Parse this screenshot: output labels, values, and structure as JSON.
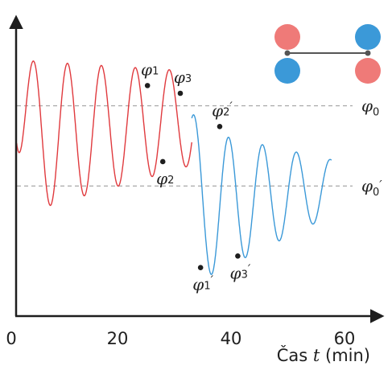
{
  "chart_data": {
    "type": "line",
    "xlabel_prefix": "Čas ",
    "xlabel_var": "t",
    "xlabel_suffix": " (min)",
    "x_ticks": [
      "0",
      "20",
      "40",
      "60"
    ],
    "xlim": [
      0,
      60
    ],
    "ylim": [
      0,
      1
    ],
    "grid": false,
    "series": [
      {
        "color": "#e03a3e",
        "x_start": 0.1,
        "x_end": 32.1,
        "initial": 0.57,
        "amp": 0.28,
        "amp_end": 0.17,
        "center": 0.59,
        "center_end": 0.66,
        "period": 6.2,
        "phase": -1.55
      },
      {
        "color": "#3b99d8",
        "x_start": 32.1,
        "x_end": 57.6,
        "initial": 0.66,
        "amp": 0.28,
        "amp_end": 0.1,
        "center": 0.34,
        "center_end": 0.41,
        "period": 6.2,
        "phase": 1.05
      }
    ],
    "reference_lines": [
      {
        "y": 0.705,
        "label": "φ",
        "sub": "0",
        "prime": ""
      },
      {
        "y": 0.415,
        "label": "φ",
        "sub": "0",
        "prime": "′"
      }
    ],
    "markers": [
      {
        "x": 24.0,
        "y": 0.778,
        "label": "φ",
        "sub": "1",
        "prime": "",
        "pos": "above"
      },
      {
        "x": 26.8,
        "y": 0.503,
        "label": "φ",
        "sub": "2",
        "prime": "",
        "pos": "below"
      },
      {
        "x": 30.0,
        "y": 0.75,
        "label": "φ",
        "sub": "3",
        "prime": "",
        "pos": "above"
      },
      {
        "x": 33.7,
        "y": 0.12,
        "label": "φ",
        "sub": "1",
        "prime": "′",
        "pos": "below"
      },
      {
        "x": 37.2,
        "y": 0.63,
        "label": "φ",
        "sub": "2",
        "prime": "′",
        "pos": "above"
      },
      {
        "x": 40.5,
        "y": 0.162,
        "label": "φ",
        "sub": "3",
        "prime": "′",
        "pos": "below"
      }
    ]
  },
  "legend_icon": {
    "color_a": "#ef7a78",
    "color_b": "#3b99d8",
    "rod_color": "#555555"
  }
}
